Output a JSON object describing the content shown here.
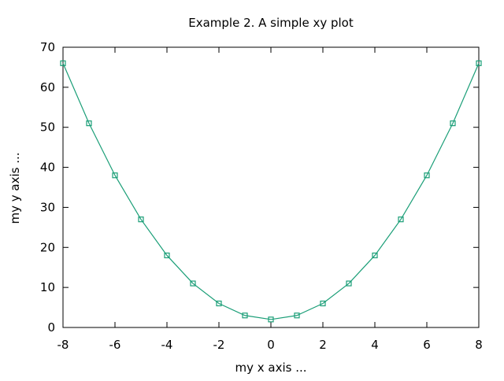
{
  "chart_data": {
    "type": "line",
    "title": "Example 2. A simple xy plot",
    "xlabel": "my x axis ...",
    "ylabel": "my y axis ...",
    "xlim": [
      -8,
      8
    ],
    "ylim": [
      0,
      70
    ],
    "x_ticks": [
      -8,
      -6,
      -4,
      -2,
      0,
      2,
      4,
      6,
      8
    ],
    "y_ticks": [
      0,
      10,
      20,
      30,
      40,
      50,
      60,
      70
    ],
    "x_tick_labels": [
      "-8",
      "-6",
      "-4",
      "-2",
      "0",
      "2",
      "4",
      "6",
      "8"
    ],
    "y_tick_labels": [
      "0",
      "10",
      "20",
      "30",
      "40",
      "50",
      "60",
      "70"
    ],
    "grid": false,
    "marker": "open-square",
    "series": [
      {
        "color": "#1a9e77",
        "x": [
          -8,
          -7,
          -6,
          -5,
          -4,
          -3,
          -2,
          -1,
          0,
          1,
          2,
          3,
          4,
          5,
          6,
          7,
          8
        ],
        "y": [
          66,
          51,
          38,
          27,
          18,
          11,
          6,
          3,
          2,
          3,
          6,
          11,
          18,
          27,
          38,
          51,
          66
        ]
      }
    ]
  }
}
